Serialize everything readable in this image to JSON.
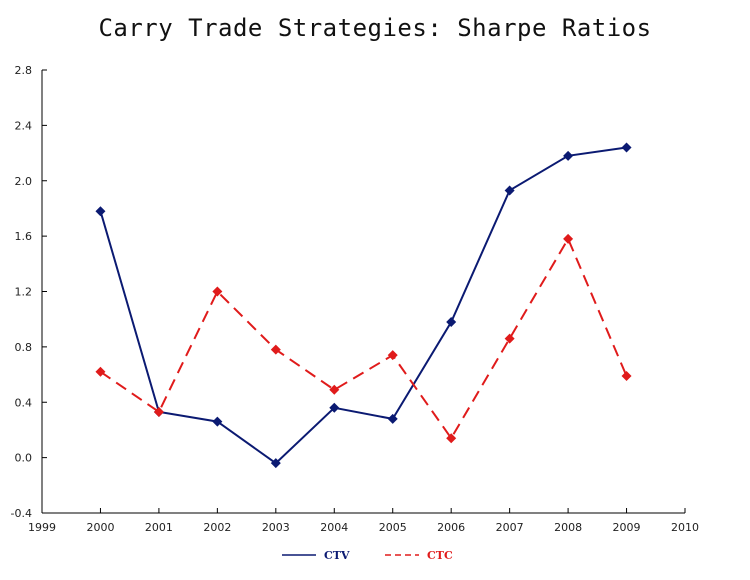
{
  "chart_data": {
    "type": "line",
    "title": "Carry Trade Strategies: Sharpe Ratios",
    "xlabel": "",
    "ylabel": "",
    "xlim": [
      1999,
      2010
    ],
    "ylim": [
      -0.4,
      2.8
    ],
    "xticks": [
      "1999",
      "2000",
      "2001",
      "2002",
      "2003",
      "2004",
      "2005",
      "2006",
      "2007",
      "2008",
      "2009",
      "2010"
    ],
    "yticks": [
      "-0.4",
      "0.0",
      "0.4",
      "0.8",
      "1.2",
      "1.6",
      "2.0",
      "2.4",
      "2.8"
    ],
    "x": [
      2000,
      2001,
      2002,
      2003,
      2004,
      2005,
      2006,
      2007,
      2008,
      2009
    ],
    "series": [
      {
        "name": "CTV",
        "color": "#0b1a72",
        "style": "solid",
        "values": [
          1.78,
          0.33,
          0.26,
          -0.04,
          0.36,
          0.28,
          0.98,
          1.93,
          2.18,
          2.24
        ]
      },
      {
        "name": "CTC",
        "color": "#e01b1b",
        "style": "dashed",
        "values": [
          0.62,
          0.33,
          1.2,
          0.78,
          0.49,
          0.74,
          0.14,
          0.86,
          1.58,
          0.59
        ]
      }
    ],
    "legend": "bottom",
    "grid": false
  }
}
